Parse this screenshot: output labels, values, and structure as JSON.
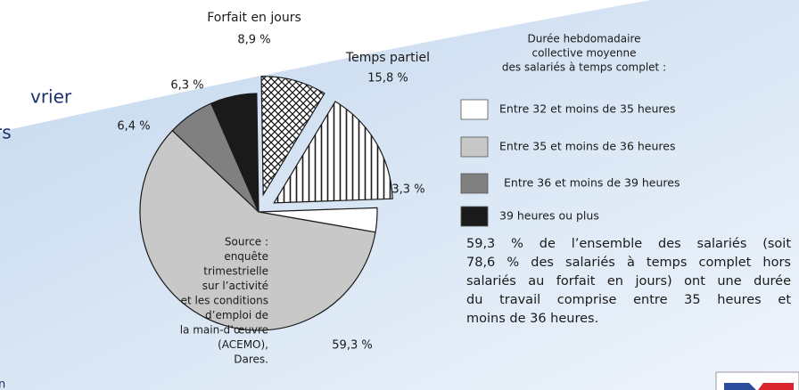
{
  "chart_data": {
    "type": "pie",
    "categories": [
      "Entre 32 et moins de 35 heures",
      "Entre 35 et moins de 36 heures",
      "Entre 36 et moins de 39 heures",
      "39 heures ou plus",
      "Forfait en jours",
      "Temps partiel"
    ],
    "values": [
      3.3,
      59.3,
      6.4,
      6.3,
      8.9,
      15.8
    ],
    "value_labels": [
      "3,3 %",
      "59,3 %",
      "6,4 %",
      "6,3 %",
      "8,9 %",
      "15,8 %"
    ],
    "colors": [
      "#ffffff",
      "#c8c8c8",
      "#808080",
      "#1a1a1a",
      "crosshatch",
      "stripes"
    ],
    "exploded": [
      false,
      false,
      false,
      false,
      true,
      true
    ],
    "legend_title": [
      "Durée hebdomadaire",
      "collective moyenne",
      "des salariés à temps complet :"
    ],
    "note": [
      "59,3 % de l’ensemble des salariés (soit",
      "78,6 % des salariés à temps complet hors",
      "salariés au forfait en jours) ont une durée",
      "du travail comprise entre 35 heures et",
      "moins de 36 heures."
    ],
    "source": [
      "Source :",
      "enquête",
      "trimestrielle",
      "sur l’activité",
      "et les conditions",
      "d’emploi de",
      "la main-d’œuvre",
      "(ACEMO),",
      "Dares."
    ],
    "fragments": [
      "vrier",
      "rs",
      "n"
    ]
  }
}
